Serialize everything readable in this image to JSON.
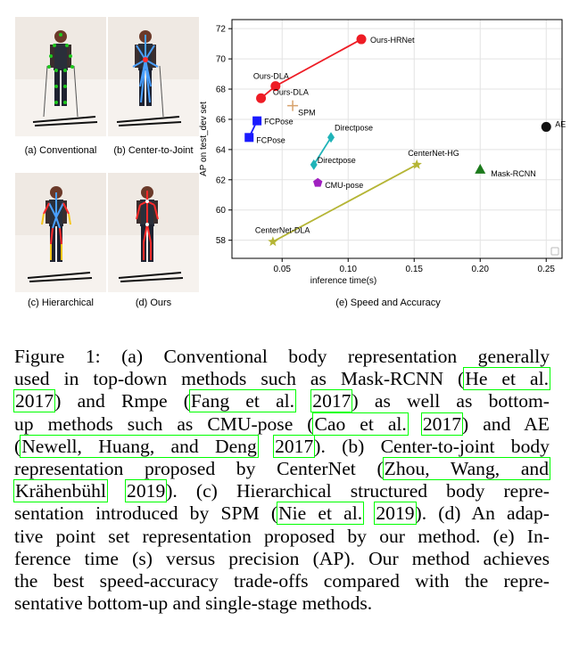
{
  "panels": [
    {
      "id": "a",
      "label": "(a) Conventional"
    },
    {
      "id": "b",
      "label": "(b) Center-to-Joint"
    },
    {
      "id": "c",
      "label": "(c) Hierarchical"
    },
    {
      "id": "d",
      "label": "(d) Ours"
    }
  ],
  "chart_label": "(e) Speed and Accuracy",
  "chart_data": {
    "type": "scatter",
    "xlabel": "inference time(s)",
    "ylabel": "AP on test_dev set",
    "xlim": [
      0.012,
      0.262
    ],
    "ylim": [
      56.8,
      72.6
    ],
    "xticks": [
      "0.05",
      "0.10",
      "0.15",
      "0.20",
      "0.25"
    ],
    "yticks": [
      "58",
      "60",
      "62",
      "64",
      "66",
      "68",
      "70",
      "72"
    ],
    "grid": true,
    "series": [
      {
        "name": "Ours",
        "color": "#ee1c25",
        "marker": "circle",
        "line": true,
        "points": [
          {
            "x": 0.034,
            "y": 67.4,
            "label": ""
          },
          {
            "x": 0.045,
            "y": 68.2,
            "label": "Ours-DLA"
          },
          {
            "x": 0.11,
            "y": 71.3,
            "label": "Ours-HRNet"
          }
        ]
      },
      {
        "name": "",
        "color": "#d7a26c",
        "marker": "plus",
        "line": false,
        "points": [
          {
            "x": 0.058,
            "y": 66.9,
            "label": "SPM"
          }
        ]
      },
      {
        "name": "",
        "color": "#1a1aff",
        "marker": "square",
        "line": true,
        "points": [
          {
            "x": 0.025,
            "y": 64.8,
            "label": "FCPose"
          },
          {
            "x": 0.031,
            "y": 65.9,
            "label": "FCPose"
          }
        ]
      },
      {
        "name": "",
        "color": "#1fb3b8",
        "marker": "diamond",
        "line": true,
        "points": [
          {
            "x": 0.074,
            "y": 63.0,
            "label": "Directpose"
          },
          {
            "x": 0.087,
            "y": 64.8,
            "label": "Directpose"
          }
        ]
      },
      {
        "name": "",
        "color": "#a020c0",
        "marker": "pentagon",
        "line": false,
        "points": [
          {
            "x": 0.077,
            "y": 61.8,
            "label": "CMU-pose"
          }
        ]
      },
      {
        "name": "",
        "color": "#b5b535",
        "marker": "star",
        "line": true,
        "points": [
          {
            "x": 0.043,
            "y": 57.9,
            "label": "CenterNet-DLA"
          },
          {
            "x": 0.152,
            "y": 63.0,
            "label": "CenterNet-HG"
          }
        ]
      },
      {
        "name": "",
        "color": "#1c7a1c",
        "marker": "triangle",
        "line": false,
        "points": [
          {
            "x": 0.2,
            "y": 62.7,
            "label": "Mask-RCNN"
          }
        ]
      },
      {
        "name": "",
        "color": "#111111",
        "marker": "circle",
        "line": false,
        "points": [
          {
            "x": 0.25,
            "y": 65.5,
            "label": "AE"
          }
        ]
      }
    ]
  },
  "caption": {
    "lines": [
      [
        {
          "t": "Figure 1: (a) Conventional body representation generally"
        }
      ],
      [
        {
          "t": "used in top-down methods such as Mask-RCNN ("
        },
        {
          "t": "He et al.",
          "c": true
        }
      ],
      [
        {
          "t": "2017",
          "c": true
        },
        {
          "t": ") and Rmpe ("
        },
        {
          "t": "Fang et al.",
          "c": true
        },
        {
          "t": " "
        },
        {
          "t": "2017",
          "c": true
        },
        {
          "t": ") as well as bottom-"
        }
      ],
      [
        {
          "t": "up methods such as CMU-pose ("
        },
        {
          "t": "Cao et al.",
          "c": true
        },
        {
          "t": " "
        },
        {
          "t": "2017",
          "c": true
        },
        {
          "t": ") and AE"
        }
      ],
      [
        {
          "t": "("
        },
        {
          "t": "Newell, Huang, and Deng",
          "c": true
        },
        {
          "t": " "
        },
        {
          "t": "2017",
          "c": true
        },
        {
          "t": "). (b) Center-to-joint body"
        }
      ],
      [
        {
          "t": "representation proposed by CenterNet ("
        },
        {
          "t": "Zhou, Wang, and",
          "c": true
        }
      ],
      [
        {
          "t": "Krähenbühl",
          "c": true
        },
        {
          "t": " "
        },
        {
          "t": "2019",
          "c": true
        },
        {
          "t": "). (c) Hierarchical structured body repre-"
        }
      ],
      [
        {
          "t": "sentation introduced by SPM ("
        },
        {
          "t": "Nie et al.",
          "c": true
        },
        {
          "t": " "
        },
        {
          "t": "2019",
          "c": true
        },
        {
          "t": "). (d) An adap-"
        }
      ],
      [
        {
          "t": "tive point set representation proposed by our method. (e) In-"
        }
      ],
      [
        {
          "t": "ference time (s) versus precision (AP). Our method achieves"
        }
      ],
      [
        {
          "t": "the best speed-accuracy trade-offs compared with the repre-"
        }
      ],
      [
        {
          "t": "sentative bottom-up and single-stage methods."
        }
      ]
    ]
  }
}
